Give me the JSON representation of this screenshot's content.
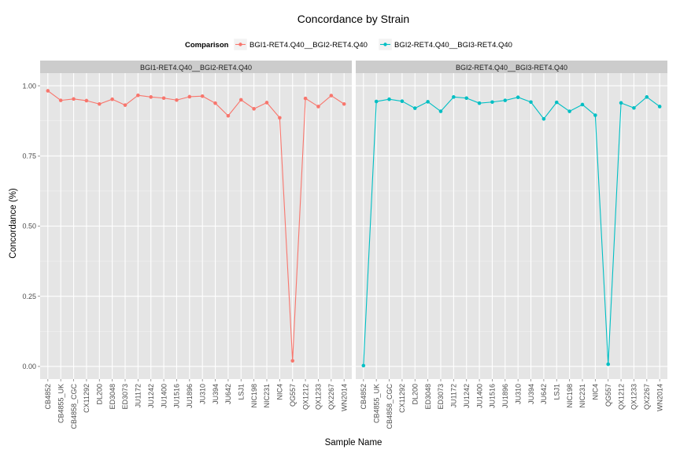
{
  "chart_data": {
    "type": "line",
    "title": "Concordance by Strain",
    "xlabel": "Sample Name",
    "ylabel": "Concordance (%)",
    "ylim": [
      -0.045,
      1.045
    ],
    "y_ticks": [
      "0.00",
      "0.25",
      "0.50",
      "0.75",
      "1.00"
    ],
    "y_tick_values": [
      0.0,
      0.25,
      0.5,
      0.75,
      1.0
    ],
    "grid": true,
    "legend": {
      "title": "Comparison",
      "placement": "top-center",
      "entries": [
        {
          "label": "BGI1-RET4.Q40__BGI2-RET4.Q40",
          "color": "#F8766D"
        },
        {
          "label": "BGI2-RET4.Q40__BGI3-RET4.Q40",
          "color": "#00BFC4"
        }
      ]
    },
    "categories": [
      "CB4852",
      "CB4855_UK",
      "CB4858_CGC",
      "CX11292",
      "DL200",
      "ED3048",
      "ED3073",
      "JU1172",
      "JU1242",
      "JU1400",
      "JU1516",
      "JU1896",
      "JU310",
      "JU394",
      "JU642",
      "LSJ1",
      "NIC198",
      "NIC231",
      "NIC4",
      "QG557",
      "QX1212",
      "QX1233",
      "QX2267",
      "WN2014"
    ],
    "panels": [
      {
        "strip": "BGI1-RET4.Q40__BGI2-RET4.Q40",
        "color": "#F8766D",
        "values": [
          0.982,
          0.948,
          0.953,
          0.947,
          0.935,
          0.952,
          0.931,
          0.966,
          0.96,
          0.956,
          0.949,
          0.961,
          0.963,
          0.938,
          0.893,
          0.95,
          0.918,
          0.94,
          0.886,
          0.02,
          0.955,
          0.926,
          0.965,
          0.935
        ]
      },
      {
        "strip": "BGI2-RET4.Q40__BGI3-RET4.Q40",
        "color": "#00BFC4",
        "values": [
          0.003,
          0.944,
          0.952,
          0.945,
          0.92,
          0.943,
          0.909,
          0.96,
          0.956,
          0.938,
          0.942,
          0.948,
          0.959,
          0.942,
          0.882,
          0.941,
          0.909,
          0.933,
          0.895,
          0.008,
          0.939,
          0.921,
          0.96,
          0.926
        ]
      }
    ]
  }
}
